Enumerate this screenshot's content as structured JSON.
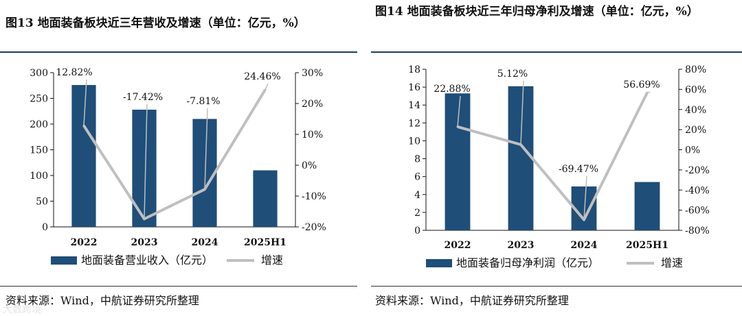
{
  "source_text": "资料来源：Wind，中航证券研究所整理",
  "watermark": "大数跨境",
  "colors": {
    "bar": "#1f4e79",
    "line": "#bfbfbf",
    "axis": "#111111",
    "rule": "#1f3a5f"
  },
  "chart_data": [
    {
      "type": "bar",
      "title": "图13  地面装备板块近三年营收及增速（单位：亿元，%）",
      "categories": [
        "2022",
        "2023",
        "2024",
        "2025H1"
      ],
      "series": [
        {
          "name": "地面装备营业收入（亿元）",
          "type": "bar",
          "axis": "left",
          "values": [
            276,
            228,
            210,
            110
          ]
        },
        {
          "name": "增速",
          "type": "line",
          "axis": "right",
          "values": [
            12.82,
            -17.42,
            -7.81,
            24.46
          ],
          "labels": [
            "12.82%",
            "-17.42%",
            "-7.81%",
            "24.46%"
          ]
        }
      ],
      "ylim_left": [
        0,
        300
      ],
      "yticks_left": [
        0,
        50,
        100,
        150,
        200,
        250,
        300
      ],
      "ylim_right": [
        -20,
        30
      ],
      "yticks_right": [
        "-20%",
        "-10%",
        "0%",
        "10%",
        "20%",
        "30%"
      ],
      "legend": [
        "地面装备营业收入（亿元）",
        "增速"
      ],
      "legend_position": "bottom"
    },
    {
      "type": "bar",
      "title": "图14  地面装备板块近三年归母净利及增速（单位：亿元，%）",
      "categories": [
        "2022",
        "2023",
        "2024",
        "2025H1"
      ],
      "series": [
        {
          "name": "地面装备归母净利润（亿元）",
          "type": "bar",
          "axis": "left",
          "values": [
            15.3,
            16.1,
            4.9,
            5.4
          ]
        },
        {
          "name": "增速",
          "type": "line",
          "axis": "right",
          "values": [
            22.88,
            5.12,
            -69.47,
            56.69
          ],
          "labels": [
            "22.88%",
            "5.12%",
            "-69.47%",
            "56.69%"
          ]
        }
      ],
      "ylim_left": [
        0,
        18
      ],
      "yticks_left": [
        0,
        2,
        4,
        6,
        8,
        10,
        12,
        14,
        16,
        18
      ],
      "ylim_right": [
        -80,
        80
      ],
      "yticks_right": [
        "-80%",
        "-60%",
        "-40%",
        "-20%",
        "0%",
        "20%",
        "40%",
        "60%",
        "80%"
      ],
      "legend": [
        "地面装备归母净利润（亿元）",
        "增速"
      ],
      "legend_position": "bottom"
    }
  ]
}
